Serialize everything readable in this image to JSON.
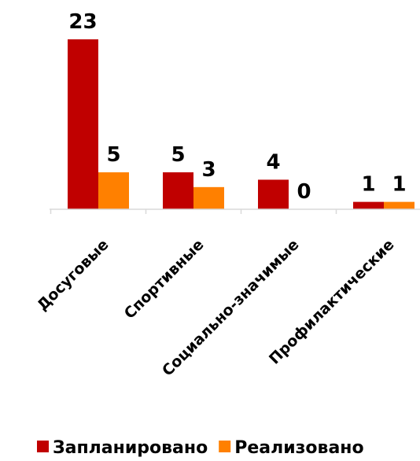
{
  "chart_data": {
    "type": "bar",
    "title": "",
    "xlabel": "",
    "ylabel": "",
    "ylim": [
      0,
      23
    ],
    "grid": false,
    "legend": "bottom",
    "categories": [
      "Досуговые",
      "Спортивные",
      "Социально-значимые",
      "Профилактические"
    ],
    "series": [
      {
        "name": "Запланировано",
        "color": "#C00000",
        "values": [
          23,
          5,
          4,
          1
        ]
      },
      {
        "name": "Реализовано",
        "color": "#FF8000",
        "values": [
          5,
          3,
          0,
          1
        ]
      }
    ]
  }
}
